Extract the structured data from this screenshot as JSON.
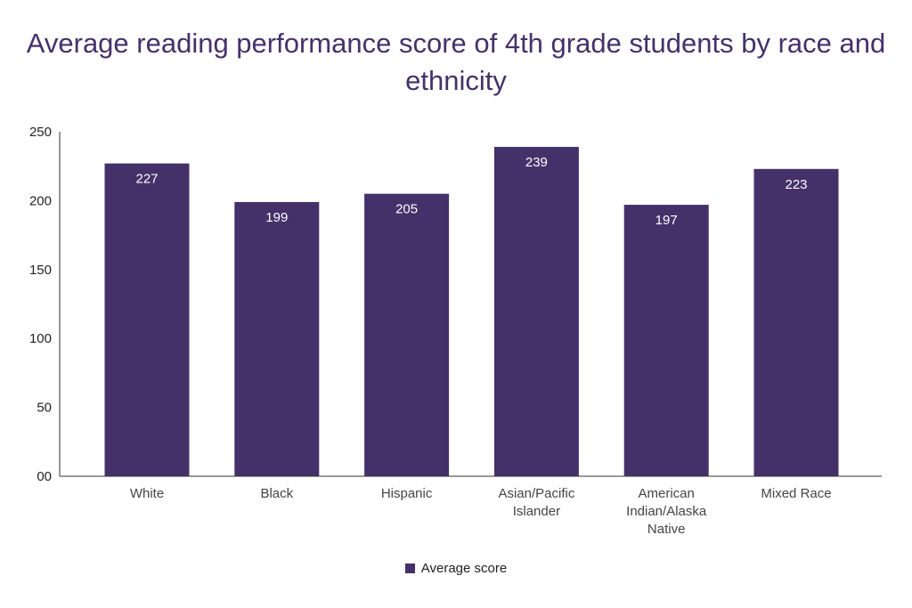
{
  "chart_data": {
    "type": "bar",
    "title": "Average reading performance score of 4th grade students by race and ethnicity",
    "categories": [
      "White",
      "Black",
      "Hispanic",
      "Asian/Pacific Islander",
      "American Indian/Alaska Native",
      "Mixed Race"
    ],
    "category_lines": [
      [
        "White"
      ],
      [
        "Black"
      ],
      [
        "Hispanic"
      ],
      [
        "Asian/Pacific",
        "Islander"
      ],
      [
        "American",
        "Indian/Alaska",
        "Native"
      ],
      [
        "Mixed Race"
      ]
    ],
    "series": [
      {
        "name": "Average score",
        "values": [
          227,
          199,
          205,
          239,
          197,
          223
        ],
        "color": "#45316a"
      }
    ],
    "ylim": [
      0,
      250
    ],
    "yticks": [
      "00",
      "50",
      "100",
      "150",
      "200",
      "250"
    ],
    "ytick_values": [
      0,
      50,
      100,
      150,
      200,
      250
    ],
    "grid": false,
    "legend": "bottom",
    "data_labels": true
  }
}
